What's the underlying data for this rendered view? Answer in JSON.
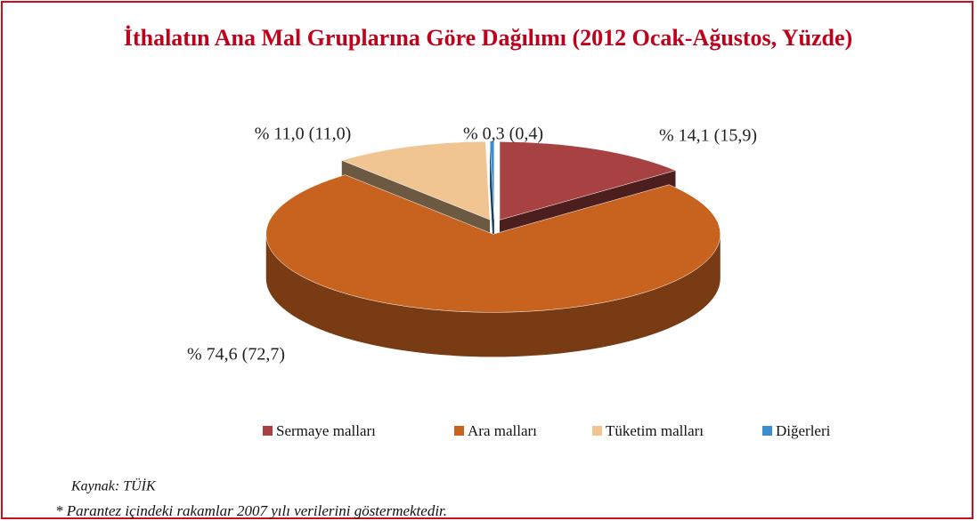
{
  "chart_data": {
    "type": "pie3d",
    "title": "İthalatın Ana Mal Gruplarına Göre Dağılımı (2012 Ocak-Ağustos, Yüzde)",
    "categories": [
      "Sermaye malları",
      "Ara malları",
      "Tüketim malları",
      "Diğerleri"
    ],
    "values": [
      14.1,
      74.6,
      11.0,
      0.3
    ],
    "value_labels": [
      "% 14,1 (15,9)",
      "% 74,6 (72,7)",
      "% 11,0 (11,0)",
      "% 0,3 (0,4)"
    ],
    "colors": [
      "#a84242",
      "#c8621f",
      "#f0c592",
      "#3b8fd1"
    ],
    "legend": "bottom",
    "source": "Kaynak: TÜİK",
    "footnote": "* Parantez içindeki rakamlar 2007 yılı verilerini göstermektedir."
  }
}
